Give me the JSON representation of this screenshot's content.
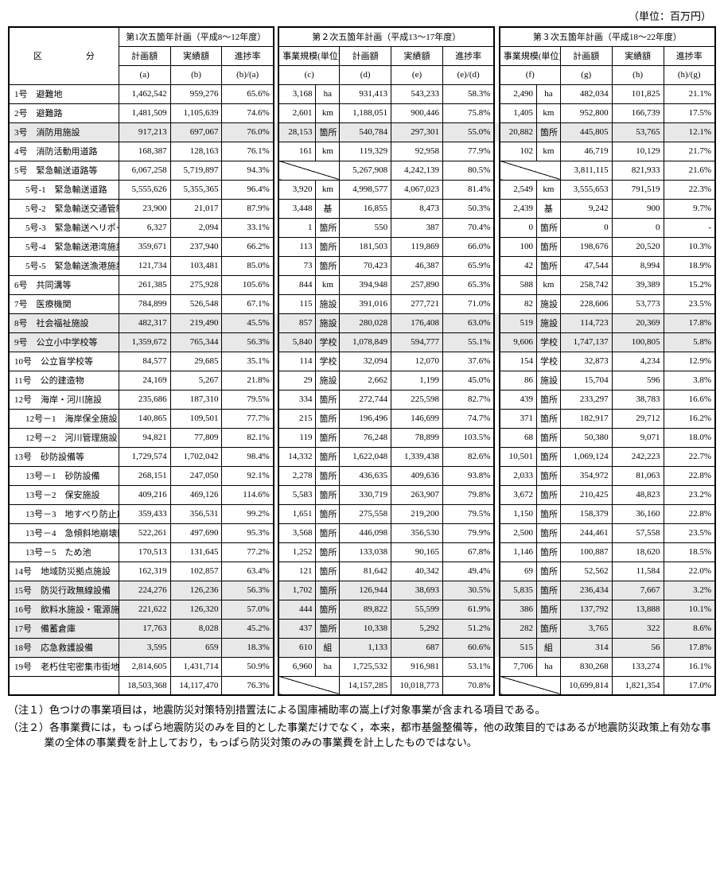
{
  "unit_label": "（単位：百万円）",
  "headers": {
    "kubun": "区　　　　　分",
    "p1": {
      "title": "第1次五箇年計画（平成8～12年度）",
      "a": "計画額",
      "b": "実績額",
      "r": "進捗率",
      "sa": "(a)",
      "sb": "(b)",
      "sr": "(b)/(a)"
    },
    "p2": {
      "title": "第２次五箇年計画（平成13～17年度）",
      "c": "事業規模(単位)",
      "d": "計画額",
      "e": "実績額",
      "r": "進捗率",
      "sc": "(c)",
      "sd": "(d)",
      "se": "(e)",
      "sr": "(e)/(d)"
    },
    "p3": {
      "title": "第３次五箇年計画（平成18～22年度）",
      "f": "事業規模(単位)",
      "g": "計画額",
      "h": "実績額",
      "r": "進捗率",
      "sf": "(f)",
      "sg": "(g)",
      "sh": "(h)",
      "sr": "(h)/(g)"
    }
  },
  "rows": [
    {
      "id": "r1",
      "shade": false,
      "cat": "1号　避難地",
      "a": "1,462,542",
      "b": "959,276",
      "r1": "65.6%",
      "c": "3,168",
      "cu": "ha",
      "d": "931,413",
      "e": "543,233",
      "r2": "58.3%",
      "f": "2,490",
      "fu": "ha",
      "g": "482,034",
      "h": "101,825",
      "r3": "21.1%"
    },
    {
      "id": "r2",
      "shade": false,
      "cat": "2号　避難路",
      "a": "1,481,509",
      "b": "1,105,639",
      "r1": "74.6%",
      "c": "2,601",
      "cu": "km",
      "d": "1,188,051",
      "e": "900,446",
      "r2": "75.8%",
      "f": "1,405",
      "fu": "km",
      "g": "952,800",
      "h": "166,739",
      "r3": "17.5%"
    },
    {
      "id": "r3",
      "shade": true,
      "cat": "3号　消防用施設",
      "a": "917,213",
      "b": "697,067",
      "r1": "76.0%",
      "c": "28,153",
      "cu": "箇所",
      "d": "540,784",
      "e": "297,301",
      "r2": "55.0%",
      "f": "20,882",
      "fu": "箇所",
      "g": "445,805",
      "h": "53,765",
      "r3": "12.1%"
    },
    {
      "id": "r4",
      "shade": false,
      "cat": "4号　消防活動用道路",
      "a": "168,387",
      "b": "128,163",
      "r1": "76.1%",
      "c": "161",
      "cu": "km",
      "d": "119,329",
      "e": "92,958",
      "r2": "77.9%",
      "f": "102",
      "fu": "km",
      "g": "46,719",
      "h": "10,129",
      "r3": "21.7%"
    },
    {
      "id": "r5",
      "shade": false,
      "cat": "5号　緊急輸送道路等",
      "a": "6,067,258",
      "b": "5,719,897",
      "r1": "94.3%",
      "diag2": true,
      "d": "5,267,908",
      "e": "4,242,139",
      "r2": "80.5%",
      "diag3": true,
      "g": "3,811,115",
      "h": "821,933",
      "r3": "21.6%"
    },
    {
      "id": "r5-1",
      "shade": false,
      "sub": true,
      "cat": "5号-1　緊急輸送道路",
      "a": "5,555,626",
      "b": "5,355,365",
      "r1": "96.4%",
      "c": "3,920",
      "cu": "km",
      "d": "4,998,577",
      "e": "4,067,023",
      "r2": "81.4%",
      "f": "2,549",
      "fu": "km",
      "g": "3,555,653",
      "h": "791,519",
      "r3": "22.3%"
    },
    {
      "id": "r5-2",
      "shade": false,
      "sub": true,
      "cat": "5号-2　緊急輸送交通管制施設",
      "a": "23,900",
      "b": "21,017",
      "r1": "87.9%",
      "c": "3,448",
      "cu": "基",
      "d": "16,855",
      "e": "8,473",
      "r2": "50.3%",
      "f": "2,439",
      "fu": "基",
      "g": "9,242",
      "h": "900",
      "r3": "9.7%"
    },
    {
      "id": "r5-3",
      "shade": false,
      "sub": true,
      "cat": "5号-3　緊急輸送ヘリポート",
      "a": "6,327",
      "b": "2,094",
      "r1": "33.1%",
      "c": "1",
      "cu": "箇所",
      "d": "550",
      "e": "387",
      "r2": "70.4%",
      "f": "0",
      "fu": "箇所",
      "g": "0",
      "h": "0",
      "r3": "-"
    },
    {
      "id": "r5-4",
      "shade": false,
      "sub": true,
      "cat": "5号-4　緊急輸送港湾施設",
      "a": "359,671",
      "b": "237,940",
      "r1": "66.2%",
      "c": "113",
      "cu": "箇所",
      "d": "181,503",
      "e": "119,869",
      "r2": "66.0%",
      "f": "100",
      "fu": "箇所",
      "g": "198,676",
      "h": "20,520",
      "r3": "10.3%"
    },
    {
      "id": "r5-5",
      "shade": false,
      "sub": true,
      "cat": "5号-5　緊急輸送漁港施設",
      "a": "121,734",
      "b": "103,481",
      "r1": "85.0%",
      "c": "73",
      "cu": "箇所",
      "d": "70,423",
      "e": "46,387",
      "r2": "65.9%",
      "f": "42",
      "fu": "箇所",
      "g": "47,544",
      "h": "8,994",
      "r3": "18.9%"
    },
    {
      "id": "r6",
      "shade": false,
      "cat": "6号　共同溝等",
      "a": "261,385",
      "b": "275,928",
      "r1": "105.6%",
      "c": "844",
      "cu": "km",
      "d": "394,948",
      "e": "257,890",
      "r2": "65.3%",
      "f": "588",
      "fu": "km",
      "g": "258,742",
      "h": "39,389",
      "r3": "15.2%"
    },
    {
      "id": "r7",
      "shade": false,
      "cat": "7号　医療機関",
      "a": "784,899",
      "b": "526,548",
      "r1": "67.1%",
      "c": "115",
      "cu": "施設",
      "d": "391,016",
      "e": "277,721",
      "r2": "71.0%",
      "f": "82",
      "fu": "施設",
      "g": "228,606",
      "h": "53,773",
      "r3": "23.5%"
    },
    {
      "id": "r8",
      "shade": true,
      "cat": "8号　社会福祉施設",
      "a": "482,317",
      "b": "219,490",
      "r1": "45.5%",
      "c": "857",
      "cu": "施設",
      "d": "280,028",
      "e": "176,408",
      "r2": "63.0%",
      "f": "519",
      "fu": "施設",
      "g": "114,723",
      "h": "20,369",
      "r3": "17.8%"
    },
    {
      "id": "r9",
      "shade": true,
      "cat": "9号　公立小中学校等",
      "a": "1,359,672",
      "b": "765,344",
      "r1": "56.3%",
      "c": "5,840",
      "cu": "学校",
      "d": "1,078,849",
      "e": "594,777",
      "r2": "55.1%",
      "f": "9,606",
      "fu": "学校",
      "g": "1,747,137",
      "h": "100,805",
      "r3": "5.8%"
    },
    {
      "id": "r10",
      "shade": false,
      "cat": "10号　公立盲学校等",
      "a": "84,577",
      "b": "29,685",
      "r1": "35.1%",
      "c": "114",
      "cu": "学校",
      "d": "32,094",
      "e": "12,070",
      "r2": "37.6%",
      "f": "154",
      "fu": "学校",
      "g": "32,873",
      "h": "4,234",
      "r3": "12.9%"
    },
    {
      "id": "r11",
      "shade": false,
      "cat": "11号　公的建造物",
      "a": "24,169",
      "b": "5,267",
      "r1": "21.8%",
      "c": "29",
      "cu": "施設",
      "d": "2,662",
      "e": "1,199",
      "r2": "45.0%",
      "f": "86",
      "fu": "施設",
      "g": "15,704",
      "h": "596",
      "r3": "3.8%"
    },
    {
      "id": "r12",
      "shade": false,
      "cat": "12号　海岸・河川施設",
      "a": "235,686",
      "b": "187,310",
      "r1": "79.5%",
      "c": "334",
      "cu": "箇所",
      "d": "272,744",
      "e": "225,598",
      "r2": "82.7%",
      "f": "439",
      "fu": "箇所",
      "g": "233,297",
      "h": "38,783",
      "r3": "16.6%"
    },
    {
      "id": "r12-1",
      "shade": false,
      "sub": true,
      "cat": "12号－1　海岸保全施設",
      "a": "140,865",
      "b": "109,501",
      "r1": "77.7%",
      "c": "215",
      "cu": "箇所",
      "d": "196,496",
      "e": "146,699",
      "r2": "74.7%",
      "f": "371",
      "fu": "箇所",
      "g": "182,917",
      "h": "29,712",
      "r3": "16.2%"
    },
    {
      "id": "r12-2",
      "shade": false,
      "sub": true,
      "cat": "12号－2　河川管理施設",
      "a": "94,821",
      "b": "77,809",
      "r1": "82.1%",
      "c": "119",
      "cu": "箇所",
      "d": "76,248",
      "e": "78,899",
      "r2": "103.5%",
      "f": "68",
      "fu": "箇所",
      "g": "50,380",
      "h": "9,071",
      "r3": "18.0%"
    },
    {
      "id": "r13",
      "shade": false,
      "cat": "13号　砂防設備等",
      "a": "1,729,574",
      "b": "1,702,042",
      "r1": "98.4%",
      "c": "14,332",
      "cu": "箇所",
      "d": "1,622,048",
      "e": "1,339,438",
      "r2": "82.6%",
      "f": "10,501",
      "fu": "箇所",
      "g": "1,069,124",
      "h": "242,223",
      "r3": "22.7%"
    },
    {
      "id": "r13-1",
      "shade": false,
      "sub": true,
      "cat": "13号－1　砂防設備",
      "a": "268,151",
      "b": "247,050",
      "r1": "92.1%",
      "c": "2,278",
      "cu": "箇所",
      "d": "436,635",
      "e": "409,636",
      "r2": "93.8%",
      "f": "2,033",
      "fu": "箇所",
      "g": "354,972",
      "h": "81,063",
      "r3": "22.8%"
    },
    {
      "id": "r13-2",
      "shade": false,
      "sub": true,
      "cat": "13号－2　保安施設",
      "a": "409,216",
      "b": "469,126",
      "r1": "114.6%",
      "c": "5,583",
      "cu": "箇所",
      "d": "330,719",
      "e": "263,907",
      "r2": "79.8%",
      "f": "3,672",
      "fu": "箇所",
      "g": "210,425",
      "h": "48,823",
      "r3": "23.2%"
    },
    {
      "id": "r13-3",
      "shade": false,
      "sub": true,
      "cat": "13号－3　地すべり防止施設",
      "a": "359,433",
      "b": "356,531",
      "r1": "99.2%",
      "c": "1,651",
      "cu": "箇所",
      "d": "275,558",
      "e": "219,200",
      "r2": "79.5%",
      "f": "1,150",
      "fu": "箇所",
      "g": "158,379",
      "h": "36,160",
      "r3": "22.8%"
    },
    {
      "id": "r13-4",
      "shade": false,
      "sub": true,
      "cat": "13号－4　急傾斜地崩壊防止施設",
      "a": "522,261",
      "b": "497,690",
      "r1": "95.3%",
      "c": "3,568",
      "cu": "箇所",
      "d": "446,098",
      "e": "356,530",
      "r2": "79.9%",
      "f": "2,500",
      "fu": "箇所",
      "g": "244,461",
      "h": "57,558",
      "r3": "23.5%"
    },
    {
      "id": "r13-5",
      "shade": false,
      "sub": true,
      "cat": "13号－5　ため池",
      "a": "170,513",
      "b": "131,645",
      "r1": "77.2%",
      "c": "1,252",
      "cu": "箇所",
      "d": "133,038",
      "e": "90,165",
      "r2": "67.8%",
      "f": "1,146",
      "fu": "箇所",
      "g": "100,887",
      "h": "18,620",
      "r3": "18.5%"
    },
    {
      "id": "r14",
      "shade": false,
      "cat": "14号　地域防災拠点施設",
      "a": "162,319",
      "b": "102,857",
      "r1": "63.4%",
      "c": "121",
      "cu": "箇所",
      "d": "81,642",
      "e": "40,342",
      "r2": "49.4%",
      "f": "69",
      "fu": "箇所",
      "g": "52,562",
      "h": "11,584",
      "r3": "22.0%"
    },
    {
      "id": "r15",
      "shade": true,
      "cat": "15号　防災行政無線設備",
      "a": "224,276",
      "b": "126,236",
      "r1": "56.3%",
      "c": "1,702",
      "cu": "箇所",
      "d": "126,944",
      "e": "38,693",
      "r2": "30.5%",
      "f": "5,835",
      "fu": "箇所",
      "g": "236,434",
      "h": "7,667",
      "r3": "3.2%"
    },
    {
      "id": "r16",
      "shade": true,
      "cat": "16号　飲料水施設・電源施設等",
      "a": "221,622",
      "b": "126,320",
      "r1": "57.0%",
      "c": "444",
      "cu": "箇所",
      "d": "89,822",
      "e": "55,599",
      "r2": "61.9%",
      "f": "386",
      "fu": "箇所",
      "g": "137,792",
      "h": "13,888",
      "r3": "10.1%"
    },
    {
      "id": "r17",
      "shade": true,
      "cat": "17号　備蓄倉庫",
      "a": "17,763",
      "b": "8,028",
      "r1": "45.2%",
      "c": "437",
      "cu": "箇所",
      "d": "10,338",
      "e": "5,292",
      "r2": "51.2%",
      "f": "282",
      "fu": "箇所",
      "g": "3,765",
      "h": "322",
      "r3": "8.6%"
    },
    {
      "id": "r18",
      "shade": true,
      "cat": "18号　応急救護設備",
      "a": "3,595",
      "b": "659",
      "r1": "18.3%",
      "c": "610",
      "cu": "組",
      "d": "1,133",
      "e": "687",
      "r2": "60.6%",
      "f": "515",
      "fu": "組",
      "g": "314",
      "h": "56",
      "r3": "17.8%"
    },
    {
      "id": "r19",
      "shade": false,
      "cat": "19号　老朽住宅密集市街地",
      "a": "2,814,605",
      "b": "1,431,714",
      "r1": "50.9%",
      "c": "6,960",
      "cu": "ha",
      "d": "1,725,532",
      "e": "916,981",
      "r2": "53.1%",
      "f": "7,706",
      "fu": "ha",
      "g": "830,268",
      "h": "133,274",
      "r3": "16.1%"
    }
  ],
  "total": {
    "a": "18,503,368",
    "b": "14,117,470",
    "r1": "76.3%",
    "d": "14,157,285",
    "e": "10,018,773",
    "r2": "70.8%",
    "g": "10,699,814",
    "h": "1,821,354",
    "r3": "17.0%"
  },
  "notes": [
    "（注１）色つけの事業項目は，地震防災対策特別措置法による国庫補助率の嵩上げ対象事業が含まれる項目である。",
    "（注２）各事業費には，もっぱら地震防災のみを目的とした事業だけでなく，本来，都市基盤整備等，他の政策目的ではあるが地震防災政策上有効な事業の全体の事業費を計上しており，もっぱら防災対策のみの事業費を計上したものではない。"
  ]
}
